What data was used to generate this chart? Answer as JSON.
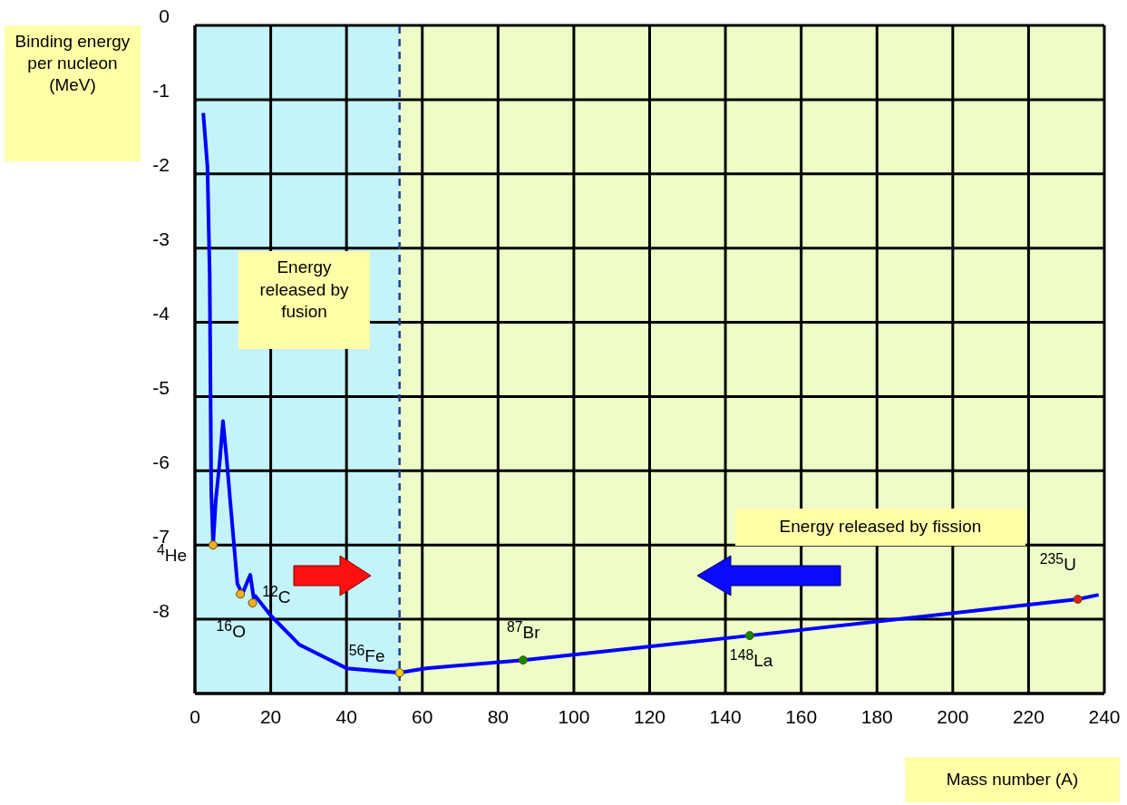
{
  "chart_data": {
    "type": "line",
    "ylabel": "Binding energy per nucleon (MeV)",
    "xlabel": "Mass number (A)",
    "xlim": [
      0,
      240
    ],
    "xticks": [
      0,
      20,
      40,
      60,
      80,
      100,
      120,
      140,
      160,
      180,
      200,
      220,
      240
    ],
    "ylim": [
      -9,
      0
    ],
    "yticks": [
      0,
      -1,
      -2,
      -3,
      -4,
      -5,
      -6,
      -7,
      -8,
      {
        "value": -9,
        "label": null
      }
    ],
    "grid": true,
    "series": [
      {
        "type": "line",
        "color": "#0000ff",
        "x": [
          2.2,
          3.3,
          3.9,
          4.1,
          4.3,
          4.8,
          5.5,
          6.5,
          7.4,
          8.3,
          9.3,
          11.2,
          12.5,
          14.6,
          15.5,
          16,
          20,
          27.5,
          40,
          49,
          54,
          61,
          86.6,
          146.4,
          233,
          238.5
        ],
        "values": [
          -1.18,
          -1.9,
          -3.37,
          -4.82,
          -6.27,
          -6.99,
          -6.4,
          -5.9,
          -5.33,
          -5.8,
          -6.4,
          -7.52,
          -7.66,
          -7.4,
          -7.71,
          -7.69,
          -7.95,
          -8.34,
          -8.66,
          -8.7,
          -8.72,
          -8.66,
          -8.55,
          -8.22,
          -7.73,
          -7.67
        ]
      },
      {
        "type": "scatter",
        "x": [
          4.8,
          12,
          15.2,
          54,
          86.6,
          146.4,
          233
        ],
        "values": [
          -7,
          -7.66,
          -7.78,
          -8.72,
          -8.55,
          -8.22,
          -7.73
        ],
        "colors": [
          "#f0b020",
          "#f0b020",
          "#f0b020",
          "#f0d020",
          "#0a8a0a",
          "#0a8a0a",
          "#e02020"
        ]
      }
    ],
    "bands": [
      {
        "axis": "x",
        "from": 0,
        "to": 54,
        "color": "#c4f4fa"
      },
      {
        "axis": "x",
        "from": 54,
        "to": 240,
        "color": "#eefcc8"
      }
    ],
    "ref_lines": [
      {
        "axis": "x",
        "value": 54,
        "color": "#1f3f8f",
        "line_style": "dashed"
      }
    ],
    "annotations": [
      {
        "text": "$^{4}$He",
        "x": 4.8,
        "y": -7
      },
      {
        "text": "$^{12}$C",
        "x": 12,
        "y": -7.66
      },
      {
        "text": "$^{16}$O",
        "x": 15.2,
        "y": -7.78
      },
      {
        "text": "$^{56}$Fe",
        "x": 54,
        "y": -8.72
      },
      {
        "text": "$^{87}$Br",
        "x": 86.6,
        "y": -8.55
      },
      {
        "text": "$^{148}$La",
        "x": 146.4,
        "y": -8.22
      },
      {
        "text": "$^{235}$U",
        "x": 233,
        "y": -7.73
      },
      "Energy released by fusion",
      "Energy released by fission"
    ]
  }
}
